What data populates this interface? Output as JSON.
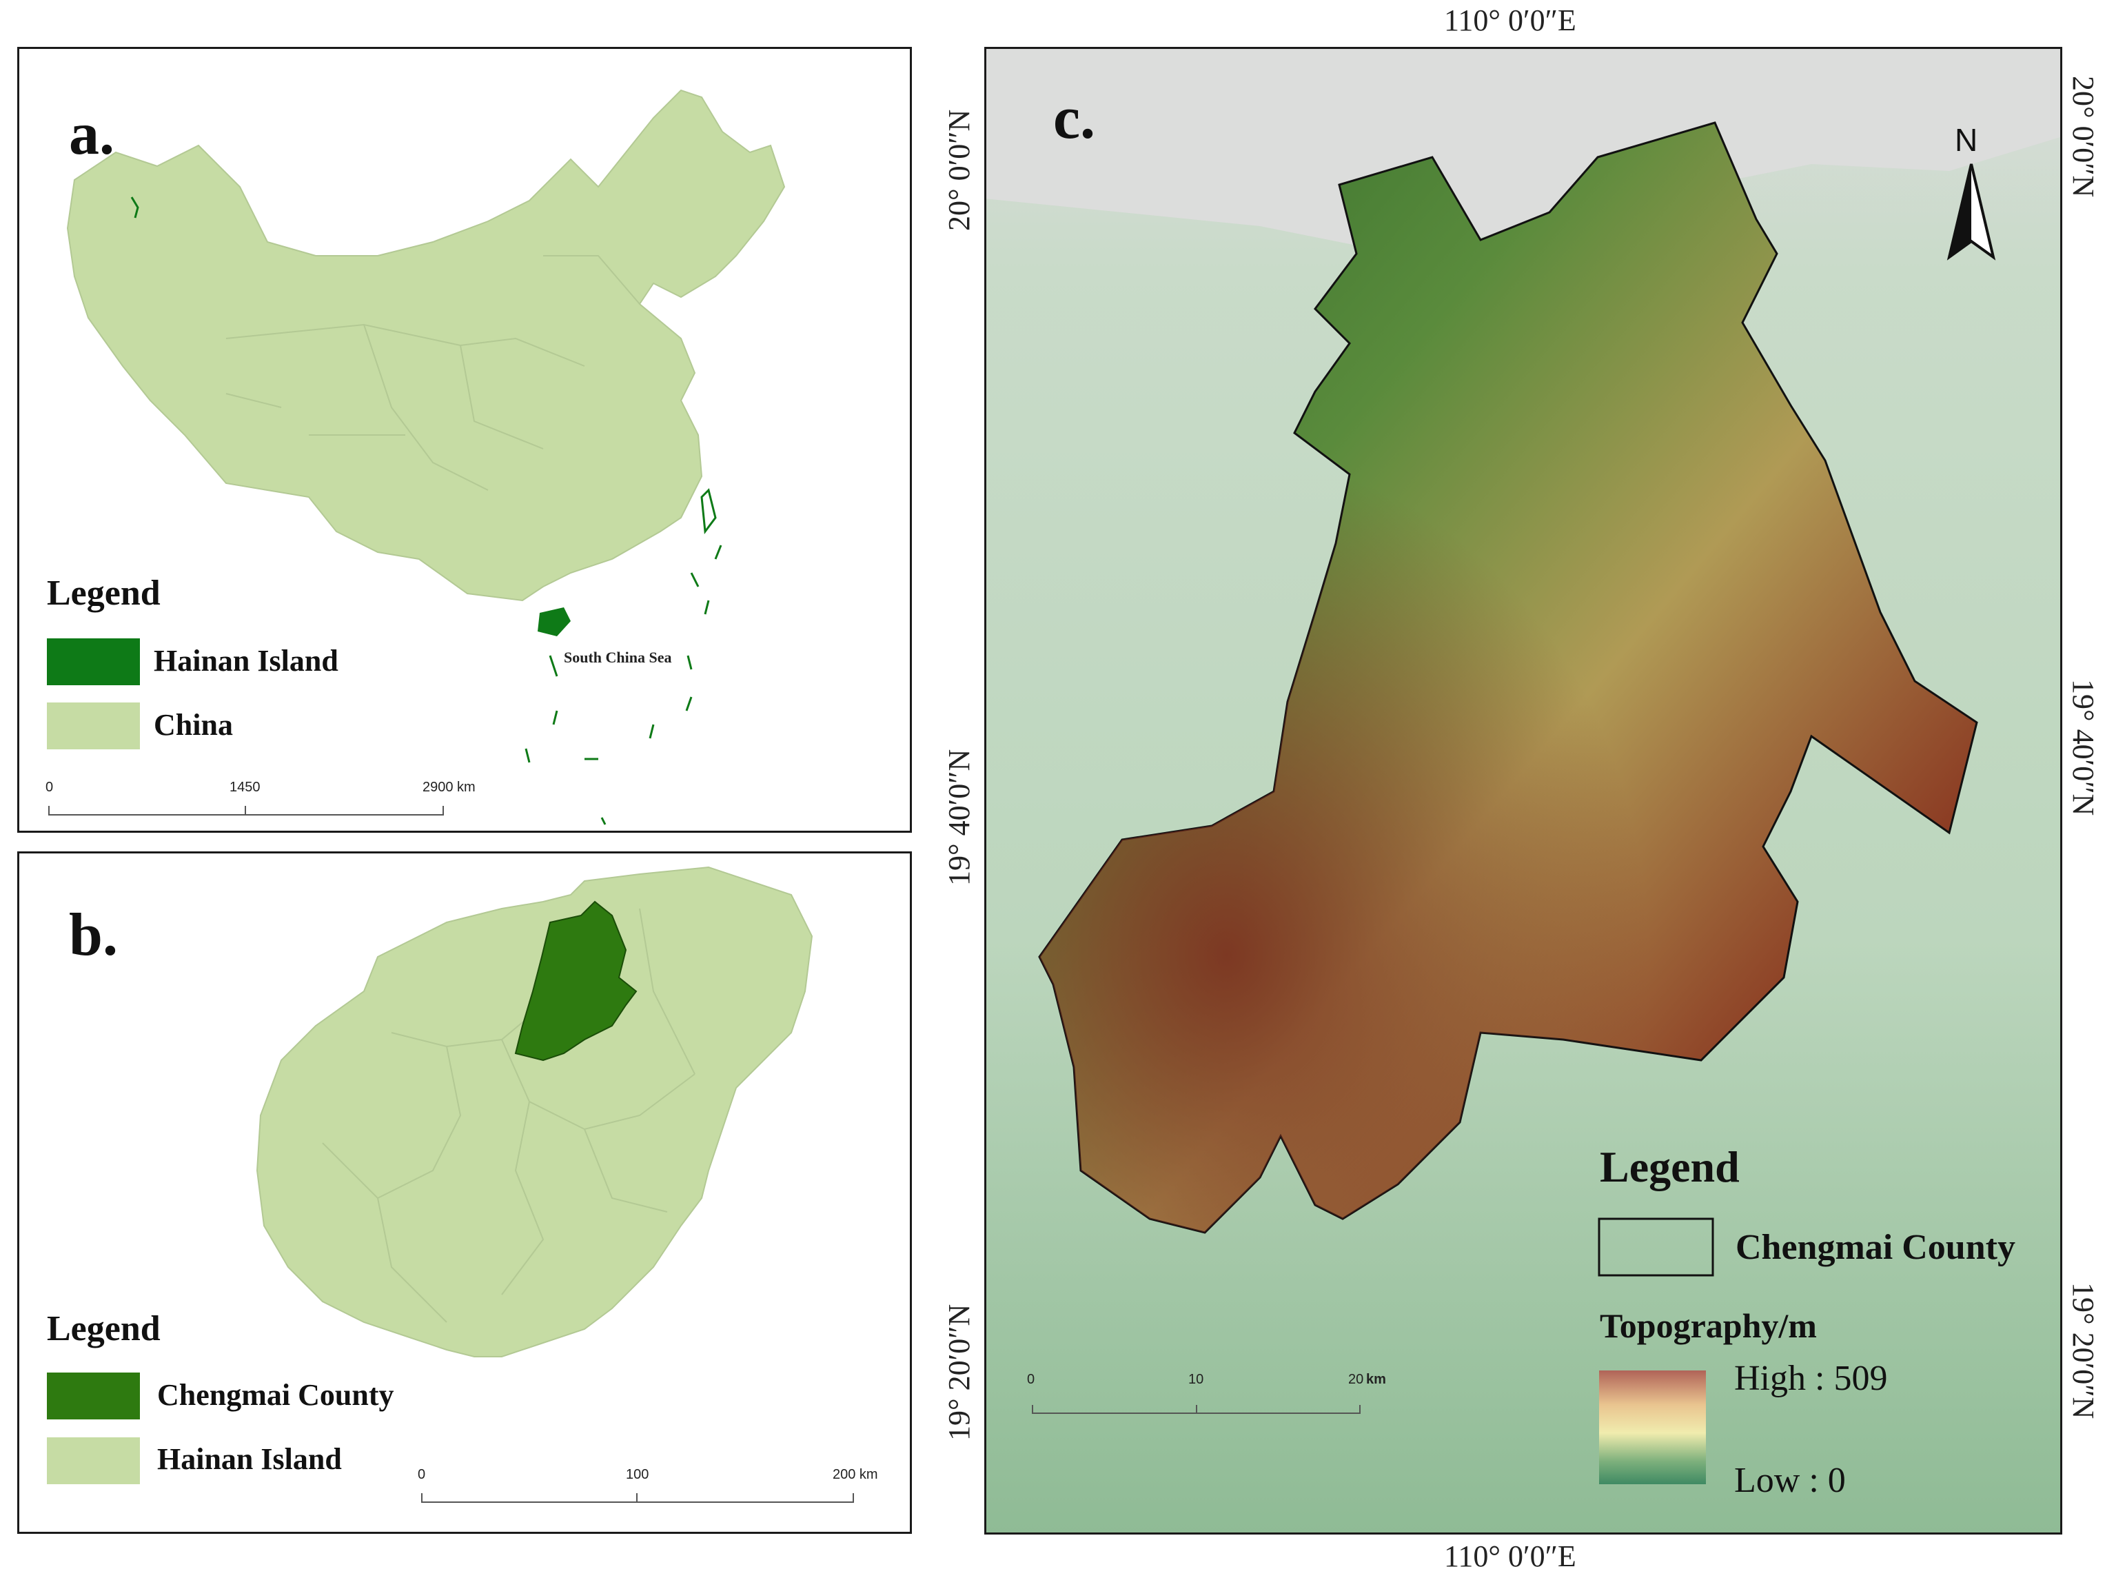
{
  "panel_a": {
    "label": "a.",
    "legend_title": "Legend",
    "legend": [
      {
        "label": "Hainan Island",
        "color": "#0e7a17"
      },
      {
        "label": "China",
        "color": "#c6dca4"
      }
    ],
    "annotation": "South China Sea",
    "scale": {
      "ticks": [
        "0",
        "1450",
        "2900 km"
      ]
    }
  },
  "panel_b": {
    "label": "b.",
    "legend_title": "Legend",
    "legend": [
      {
        "label": "Chengmai County",
        "color": "#2e7a10"
      },
      {
        "label": "Hainan Island",
        "color": "#c6dca4"
      }
    ],
    "scale": {
      "ticks": [
        "0",
        "100",
        "200 km"
      ]
    }
  },
  "panel_c": {
    "label": "c.",
    "north": "N",
    "coords": {
      "top": "110° 0′0″E",
      "bottom": "110° 0′0″E",
      "left": [
        "20° 0′0″N",
        "19° 40′0″N",
        "19° 20′0″N"
      ],
      "right": [
        "20° 0′0″N",
        "19° 40′0″N",
        "19° 20′0″N"
      ]
    },
    "legend_title": "Legend",
    "boundary_label": "Chengmai County",
    "topography_title": "Topography/m",
    "high_label": "High : 509",
    "low_label": "Low : 0",
    "ramp_colors": [
      "#b06358",
      "#e9c48f",
      "#f0ecae",
      "#7db07c",
      "#3f8a63"
    ],
    "scale": {
      "ticks": [
        "0",
        "10",
        "20"
      ],
      "unit": "km"
    }
  },
  "colors": {
    "land": "#c6dca4",
    "highlight": "#2e7a10",
    "hainan": "#0e7a17",
    "frame": "#1a1a1a"
  }
}
